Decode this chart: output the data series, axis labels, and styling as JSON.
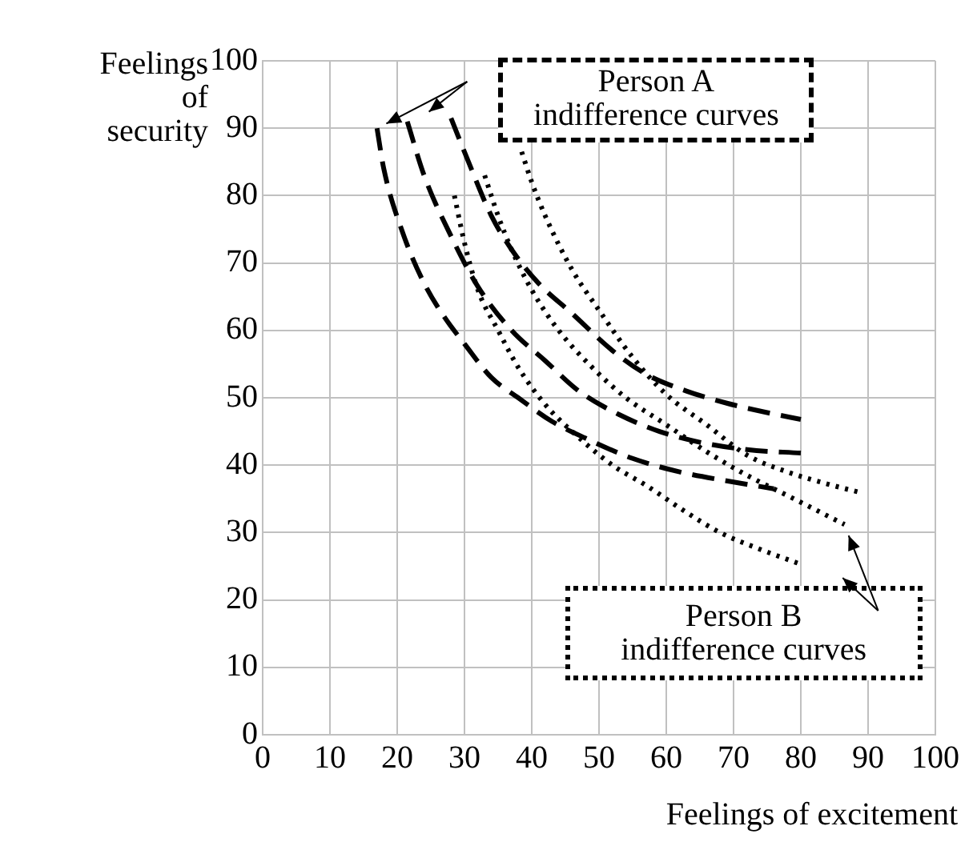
{
  "chart_data": {
    "type": "line",
    "xlabel": "Feelings of excitement",
    "ylabel": "Feelings of security",
    "xlim": [
      0,
      100
    ],
    "xticks": [
      0,
      10,
      20,
      30,
      40,
      50,
      60,
      70,
      80,
      90,
      100
    ],
    "ylim": [
      0,
      100
    ],
    "yticks": [
      0,
      10,
      20,
      30,
      40,
      50,
      60,
      70,
      80,
      90,
      100
    ],
    "grid": true,
    "legend": false,
    "marker": "none",
    "series": [
      {
        "color": "#000000",
        "line_style": "dashed",
        "x": [
          17,
          18,
          21,
          24,
          27,
          30,
          34,
          38,
          43,
          48,
          55,
          62,
          70,
          76
        ],
        "values": [
          90,
          84,
          74,
          67,
          62,
          58,
          53,
          50,
          46.5,
          44,
          41,
          39,
          37.5,
          36.5
        ]
      },
      {
        "color": "#000000",
        "line_style": "dashed",
        "x": [
          21.5,
          24,
          28,
          32,
          37,
          42,
          47,
          53,
          59,
          65,
          72,
          80
        ],
        "values": [
          91,
          83,
          74,
          66.5,
          60,
          55.5,
          51,
          47.5,
          45,
          43.4,
          42.3,
          41.8
        ]
      },
      {
        "color": "#000000",
        "line_style": "dashed",
        "x": [
          28,
          31,
          34,
          37,
          41,
          46,
          52,
          57,
          63,
          69,
          75,
          80
        ],
        "values": [
          91.5,
          84,
          77,
          72,
          67,
          62.5,
          57,
          53.5,
          51,
          49.2,
          47.8,
          46.8
        ]
      },
      {
        "color": "#000000",
        "line_style": "dotted",
        "x": [
          28.5,
          30,
          32,
          35,
          38,
          42,
          46,
          52,
          57,
          63,
          68,
          74,
          80
        ],
        "values": [
          80,
          73,
          66,
          60,
          54.5,
          49,
          45,
          40,
          37,
          33,
          30,
          27.5,
          25.3
        ]
      },
      {
        "color": "#000000",
        "line_style": "dotted",
        "x": [
          33,
          35,
          37,
          40,
          44,
          49,
          54,
          60,
          66,
          72,
          78,
          86.5
        ],
        "values": [
          83,
          77,
          72,
          66,
          60,
          54.5,
          50,
          46,
          42,
          38.5,
          35.5,
          31.2
        ]
      },
      {
        "color": "#000000",
        "line_style": "dotted",
        "x": [
          38.5,
          40,
          42,
          46,
          50,
          55,
          60,
          66,
          72,
          78,
          84,
          89
        ],
        "values": [
          86.5,
          82,
          77,
          69,
          63,
          56,
          50.5,
          46,
          41.5,
          39,
          37.2,
          35.9
        ]
      }
    ],
    "annotations": [
      "Person A\nindifference curves",
      {
        "text": "Person B\nindifference curves",
        "x": 86.5,
        "y": 31.2
      }
    ]
  }
}
